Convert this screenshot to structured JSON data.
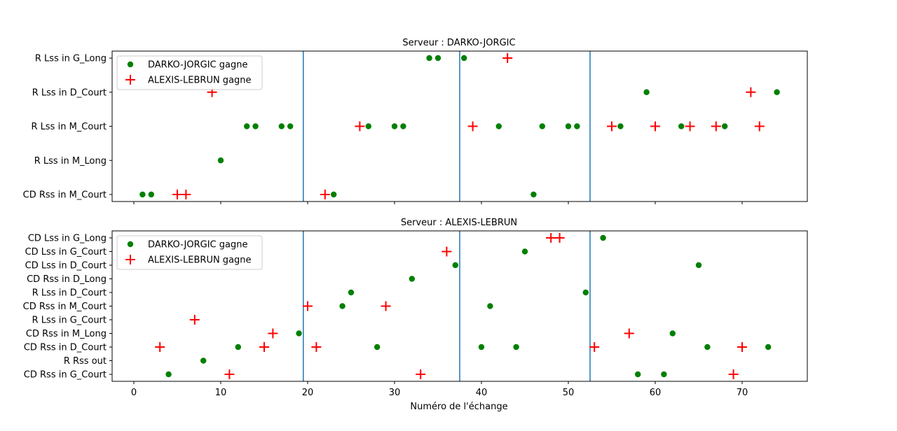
{
  "colors": {
    "green": "#008000",
    "red": "#ff0000",
    "vline": "#1f77b4"
  },
  "legend_labels": [
    "DARKO-JORGIC gagne",
    "ALEXIS-LEBRUN gagne"
  ],
  "chart_data": [
    {
      "type": "scatter",
      "title": "Serveur : DARKO-JORGIC",
      "xlabel": "",
      "xlim": [
        -2.5,
        77.5
      ],
      "xticks": [
        0,
        10,
        20,
        30,
        40,
        50,
        60,
        70
      ],
      "show_xtick_labels": false,
      "categories": [
        "CD Rss in M_Court",
        "R Lss in M_Long",
        "R Lss in M_Court",
        "R Lss in D_Court",
        "R Lss in G_Long"
      ],
      "vlines": [
        19.5,
        37.5,
        52.5
      ],
      "legend": "top-left",
      "series": [
        {
          "name": "DARKO-JORGIC gagne",
          "marker": "circle",
          "color": "#008000",
          "points": [
            [
              1,
              "CD Rss in M_Court"
            ],
            [
              2,
              "CD Rss in M_Court"
            ],
            [
              23,
              "CD Rss in M_Court"
            ],
            [
              46,
              "CD Rss in M_Court"
            ],
            [
              10,
              "R Lss in M_Long"
            ],
            [
              13,
              "R Lss in M_Court"
            ],
            [
              14,
              "R Lss in M_Court"
            ],
            [
              17,
              "R Lss in M_Court"
            ],
            [
              18,
              "R Lss in M_Court"
            ],
            [
              27,
              "R Lss in M_Court"
            ],
            [
              30,
              "R Lss in M_Court"
            ],
            [
              31,
              "R Lss in M_Court"
            ],
            [
              42,
              "R Lss in M_Court"
            ],
            [
              47,
              "R Lss in M_Court"
            ],
            [
              50,
              "R Lss in M_Court"
            ],
            [
              51,
              "R Lss in M_Court"
            ],
            [
              56,
              "R Lss in M_Court"
            ],
            [
              63,
              "R Lss in M_Court"
            ],
            [
              68,
              "R Lss in M_Court"
            ],
            [
              59,
              "R Lss in D_Court"
            ],
            [
              74,
              "R Lss in D_Court"
            ],
            [
              34,
              "R Lss in G_Long"
            ],
            [
              35,
              "R Lss in G_Long"
            ],
            [
              38,
              "R Lss in G_Long"
            ]
          ]
        },
        {
          "name": "ALEXIS-LEBRUN gagne",
          "marker": "plus",
          "color": "#ff0000",
          "points": [
            [
              5,
              "CD Rss in M_Court"
            ],
            [
              6,
              "CD Rss in M_Court"
            ],
            [
              22,
              "CD Rss in M_Court"
            ],
            [
              26,
              "R Lss in M_Court"
            ],
            [
              39,
              "R Lss in M_Court"
            ],
            [
              55,
              "R Lss in M_Court"
            ],
            [
              60,
              "R Lss in M_Court"
            ],
            [
              64,
              "R Lss in M_Court"
            ],
            [
              67,
              "R Lss in M_Court"
            ],
            [
              72,
              "R Lss in M_Court"
            ],
            [
              9,
              "R Lss in D_Court"
            ],
            [
              71,
              "R Lss in D_Court"
            ],
            [
              43,
              "R Lss in G_Long"
            ]
          ]
        }
      ]
    },
    {
      "type": "scatter",
      "title": "Serveur : ALEXIS-LEBRUN",
      "xlabel": "Numéro de l'échange",
      "xlim": [
        -2.5,
        77.5
      ],
      "xticks": [
        0,
        10,
        20,
        30,
        40,
        50,
        60,
        70
      ],
      "show_xtick_labels": true,
      "categories": [
        "CD Rss in G_Court",
        "R Rss out",
        "CD Rss in D_Court",
        "CD Rss in M_Long",
        "R Lss in G_Court",
        "CD Rss in M_Court",
        "R Lss in D_Court",
        "CD Rss in D_Long",
        "CD Lss in D_Court",
        "CD Lss in G_Court",
        "CD Lss in G_Long"
      ],
      "vlines": [
        19.5,
        37.5,
        52.5
      ],
      "legend": "top-left",
      "series": [
        {
          "name": "DARKO-JORGIC gagne",
          "marker": "circle",
          "color": "#008000",
          "points": [
            [
              4,
              "CD Rss in G_Court"
            ],
            [
              58,
              "CD Rss in G_Court"
            ],
            [
              61,
              "CD Rss in G_Court"
            ],
            [
              8,
              "R Rss out"
            ],
            [
              12,
              "CD Rss in D_Court"
            ],
            [
              28,
              "CD Rss in D_Court"
            ],
            [
              40,
              "CD Rss in D_Court"
            ],
            [
              44,
              "CD Rss in D_Court"
            ],
            [
              66,
              "CD Rss in D_Court"
            ],
            [
              73,
              "CD Rss in D_Court"
            ],
            [
              19,
              "CD Rss in M_Long"
            ],
            [
              62,
              "CD Rss in M_Long"
            ],
            [
              24,
              "CD Rss in M_Court"
            ],
            [
              41,
              "CD Rss in M_Court"
            ],
            [
              25,
              "R Lss in D_Court"
            ],
            [
              52,
              "R Lss in D_Court"
            ],
            [
              32,
              "CD Rss in D_Long"
            ],
            [
              37,
              "CD Lss in D_Court"
            ],
            [
              65,
              "CD Lss in D_Court"
            ],
            [
              45,
              "CD Lss in G_Court"
            ],
            [
              54,
              "CD Lss in G_Long"
            ]
          ]
        },
        {
          "name": "ALEXIS-LEBRUN gagne",
          "marker": "plus",
          "color": "#ff0000",
          "points": [
            [
              11,
              "CD Rss in G_Court"
            ],
            [
              33,
              "CD Rss in G_Court"
            ],
            [
              69,
              "CD Rss in G_Court"
            ],
            [
              3,
              "CD Rss in D_Court"
            ],
            [
              15,
              "CD Rss in D_Court"
            ],
            [
              21,
              "CD Rss in D_Court"
            ],
            [
              53,
              "CD Rss in D_Court"
            ],
            [
              70,
              "CD Rss in D_Court"
            ],
            [
              16,
              "CD Rss in M_Long"
            ],
            [
              57,
              "CD Rss in M_Long"
            ],
            [
              7,
              "R Lss in G_Court"
            ],
            [
              20,
              "CD Rss in M_Court"
            ],
            [
              29,
              "CD Rss in M_Court"
            ],
            [
              36,
              "CD Lss in G_Court"
            ],
            [
              48,
              "CD Lss in G_Long"
            ],
            [
              49,
              "CD Lss in G_Long"
            ]
          ]
        }
      ]
    }
  ]
}
